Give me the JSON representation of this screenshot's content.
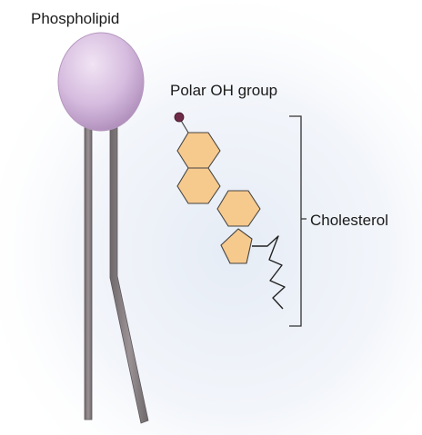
{
  "labels": {
    "phospholipid": "Phospholipid",
    "polar_oh_group": "Polar OH group",
    "cholesterol": "Cholesterol"
  },
  "colors": {
    "background_glow": "#e4ebf5",
    "phospholipid_head": "#d3b9dd",
    "phospholipid_tail": "#8a8285",
    "steroid_ring_fill": "#f6c98d",
    "steroid_ring_stroke": "#444444",
    "oh_dot": "#6e2b48",
    "bracket": "#333333"
  },
  "icons": {
    "head": "phospholipid-head-icon",
    "tail": "fatty-acid-tail-icon",
    "ring": "steroid-ring-icon"
  }
}
